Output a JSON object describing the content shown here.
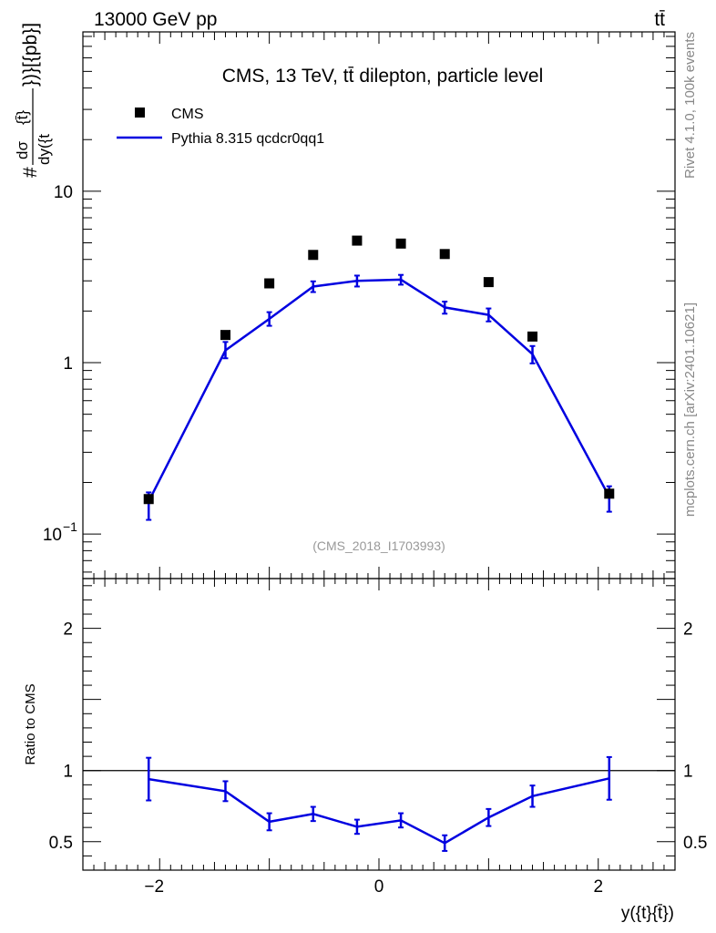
{
  "header": {
    "energy_label": "13000 GeV pp",
    "process_label": "tt̄"
  },
  "side_labels": {
    "rivet": "Rivet 4.1.0,  100k events",
    "source": "mcplots.cern.ch [arXiv:2401.10621]"
  },
  "colors": {
    "data": "#000000",
    "mc": "#0000e0",
    "axis": "#000000",
    "watermark": "#999999",
    "side_text": "#888888"
  },
  "chart_data": [
    {
      "type": "scatter",
      "panel": "main",
      "title": "CMS, 13 TeV, tt̄ dilepton, particle level",
      "watermark": "(CMS_2018_I1703993)",
      "xlabel": "y({t}{t̄})",
      "ylabel_prefix": "#",
      "ylabel_fraction_numerator": "dσ",
      "ylabel_fraction_denominator": "dy({t",
      "ylabel_fraction_overline": "{t̄}",
      "ylabel_suffix": "})}[{pb}]",
      "yscale": "log",
      "xlim": [
        -2.7,
        2.7
      ],
      "ylim": [
        0.055,
        85
      ],
      "y_tick_labels": [
        {
          "value": 0.1,
          "base": "10",
          "exp": "−1"
        },
        {
          "value": 1,
          "base": "1",
          "exp": ""
        },
        {
          "value": 10,
          "base": "10",
          "exp": ""
        }
      ],
      "legend_position": "top-left",
      "series": [
        {
          "name": "CMS",
          "kind": "data",
          "x": [
            -2.1,
            -1.4,
            -1.0,
            -0.6,
            -0.2,
            0.2,
            0.6,
            1.0,
            1.4,
            2.1
          ],
          "y": [
            0.16,
            1.45,
            2.9,
            4.25,
            5.15,
            4.95,
            4.3,
            2.95,
            1.42,
            0.172
          ]
        },
        {
          "name": "Pythia 8.315 qcdcr0qq1",
          "kind": "mc",
          "x": [
            -2.1,
            -1.4,
            -1.0,
            -0.6,
            -0.2,
            0.2,
            0.6,
            1.0,
            1.4,
            2.1
          ],
          "y": [
            0.155,
            1.18,
            1.8,
            2.78,
            3.0,
            3.05,
            2.1,
            1.9,
            1.12,
            0.165
          ],
          "yerr_low": [
            0.034,
            0.12,
            0.16,
            0.2,
            0.22,
            0.2,
            0.17,
            0.16,
            0.13,
            0.03
          ],
          "yerr_high": [
            0.02,
            0.14,
            0.17,
            0.2,
            0.22,
            0.2,
            0.17,
            0.17,
            0.13,
            0.025
          ]
        }
      ]
    },
    {
      "type": "line",
      "panel": "ratio",
      "xlabel": "y({t}{t̄})",
      "ylabel": "Ratio to CMS",
      "xlim": [
        -2.7,
        2.7
      ],
      "ylim": [
        0.3,
        2.35
      ],
      "x_tick_labels": [
        "−2",
        "0",
        "2"
      ],
      "y_tick_labels": [
        "0.5",
        "1",
        "2"
      ],
      "reference_line": 1,
      "series": [
        {
          "name": "Pythia 8.315 qcdcr0qq1",
          "x": [
            -2.1,
            -1.4,
            -1.0,
            -0.6,
            -0.2,
            0.2,
            0.6,
            1.0,
            1.4,
            2.1
          ],
          "y": [
            0.94,
            0.855,
            0.64,
            0.695,
            0.605,
            0.65,
            0.49,
            0.67,
            0.82,
            0.945
          ],
          "yerr": [
            0.15,
            0.07,
            0.06,
            0.05,
            0.05,
            0.05,
            0.055,
            0.06,
            0.075,
            0.15
          ]
        }
      ]
    }
  ]
}
